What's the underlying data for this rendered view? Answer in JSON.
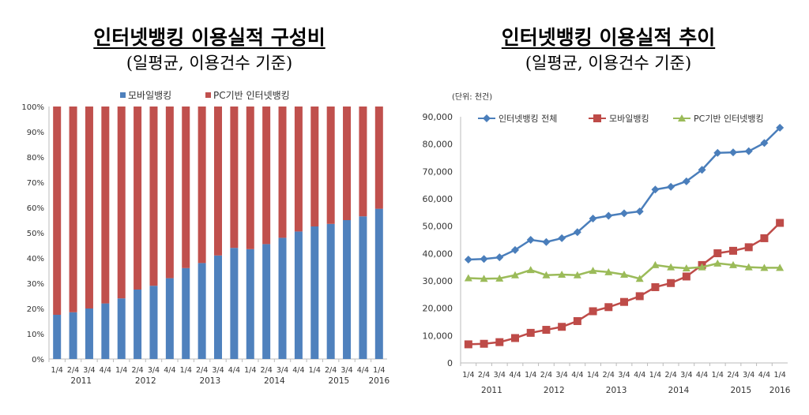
{
  "left": {
    "title": "인터넷뱅킹 이용실적 구성비",
    "subtitle": "(일평균, 이용건수 기준)"
  },
  "right": {
    "title": "인터넷뱅킹 이용실적 추이",
    "subtitle": "(일평균, 이용건수 기준)",
    "unit": "(단위: 천건)"
  },
  "chart_data": [
    {
      "type": "bar",
      "stacked": "percent",
      "title": "인터넷뱅킹 이용실적 구성비",
      "categories": [
        "1/4",
        "2/4",
        "3/4",
        "4/4",
        "1/4",
        "2/4",
        "3/4",
        "4/4",
        "1/4",
        "2/4",
        "3/4",
        "4/4",
        "1/4",
        "2/4",
        "3/4",
        "4/4",
        "1/4",
        "2/4",
        "3/4",
        "4/4",
        "1/4"
      ],
      "years": [
        "2011",
        "2012",
        "2013",
        "2014",
        "2015",
        "2016"
      ],
      "yticks": [
        "0%",
        "10%",
        "20%",
        "30%",
        "40%",
        "50%",
        "60%",
        "70%",
        "80%",
        "90%",
        "100%"
      ],
      "ylim": [
        0,
        100
      ],
      "legend": "top",
      "series": [
        {
          "name": "모바일뱅킹",
          "color": "#4f81bd",
          "values": [
            17.5,
            18.5,
            20,
            22,
            24,
            27.5,
            29,
            32,
            36,
            38,
            41,
            44,
            43.5,
            45.5,
            48,
            50.5,
            52.5,
            53.5,
            55,
            56.5,
            59.5
          ]
        },
        {
          "name": "PC기반 인터넷뱅킹",
          "color": "#c0504d",
          "values": [
            82.5,
            81.5,
            80,
            78,
            76,
            72.5,
            71,
            68,
            64,
            62,
            59,
            56,
            56.5,
            54.5,
            52,
            49.5,
            47.5,
            46.5,
            45,
            43.5,
            40.5
          ]
        }
      ]
    },
    {
      "type": "line",
      "title": "인터넷뱅킹 이용실적 추이",
      "ylabel": "(단위: 천건)",
      "categories": [
        "1/4",
        "2/4",
        "3/4",
        "4/4",
        "1/4",
        "2/4",
        "3/4",
        "4/4",
        "1/4",
        "2/4",
        "3/4",
        "4/4",
        "1/4",
        "2/4",
        "3/4",
        "4/4",
        "1/4",
        "2/4",
        "3/4",
        "4/4",
        "1/4"
      ],
      "years": [
        "2011",
        "2012",
        "2013",
        "2014",
        "2015",
        "2016"
      ],
      "yticks": [
        "0",
        "10,000",
        "20,000",
        "30,000",
        "40,000",
        "50,000",
        "60,000",
        "70,000",
        "80,000",
        "90,000"
      ],
      "ylim": [
        0,
        90000
      ],
      "legend": "top",
      "series": [
        {
          "name": "인터넷뱅킹 전체",
          "color": "#4a7ebb",
          "marker": "diamond",
          "values": [
            37800,
            38000,
            38600,
            41300,
            45000,
            44200,
            45600,
            47800,
            52800,
            53800,
            54700,
            55400,
            63400,
            64400,
            66400,
            70600,
            76800,
            77000,
            77400,
            80400,
            86000
          ]
        },
        {
          "name": "모바일뱅킹",
          "color": "#be4b48",
          "marker": "square",
          "values": [
            6800,
            7000,
            7600,
            9100,
            11000,
            12100,
            13200,
            15300,
            18900,
            20400,
            22300,
            24400,
            27700,
            29200,
            31600,
            35800,
            40100,
            41000,
            42300,
            45600,
            51200
          ]
        },
        {
          "name": "PC기반 인터넷뱅킹",
          "color": "#9bbb59",
          "marker": "triangle",
          "values": [
            31000,
            30800,
            30900,
            32100,
            34000,
            32100,
            32300,
            32100,
            33700,
            33200,
            32300,
            30800,
            35800,
            35000,
            34600,
            35000,
            36400,
            35800,
            35000,
            34800,
            34800
          ]
        }
      ]
    }
  ]
}
